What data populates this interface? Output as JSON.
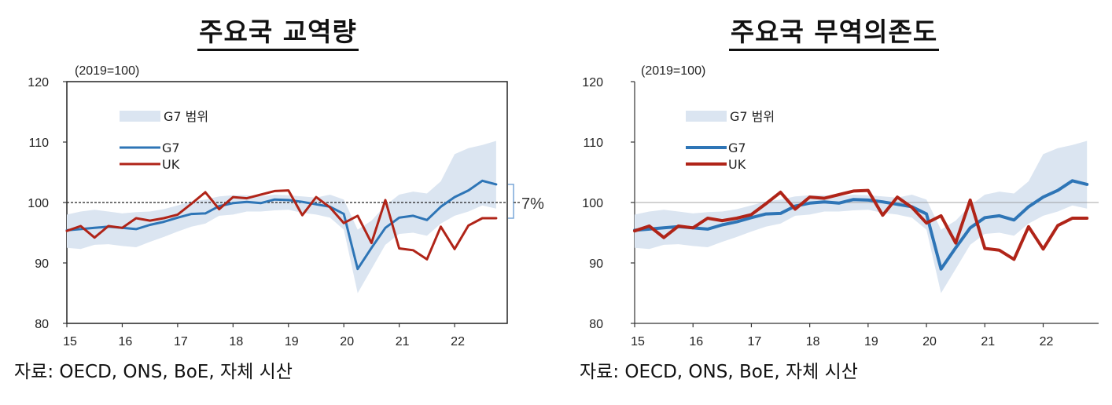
{
  "sources": [
    "자료: OECD, ONS, BoE, 자체 시산",
    "자료: OECD, ONS, BoE, 자체 시산"
  ],
  "colors": {
    "band": "#dbe5f1",
    "g7": "#2e75b6",
    "uk": "#b02418"
  },
  "chart_data": [
    {
      "type": "line",
      "title": "주요국 교역량",
      "unit_label": "(2019=100)",
      "x_ticks": [
        "15",
        "16",
        "17",
        "18",
        "19",
        "20",
        "21",
        "22"
      ],
      "ylim": [
        80,
        120
      ],
      "y_ticks": [
        "80",
        "90",
        "100",
        "110",
        "120"
      ],
      "reference_line": 100,
      "annotation": "7%",
      "legend": [
        "G7 범위",
        "G7",
        "UK"
      ],
      "x": [
        2015.0,
        2015.25,
        2015.5,
        2015.75,
        2016.0,
        2016.25,
        2016.5,
        2016.75,
        2017.0,
        2017.25,
        2017.5,
        2017.75,
        2018.0,
        2018.25,
        2018.5,
        2018.75,
        2019.0,
        2019.25,
        2019.5,
        2019.75,
        2020.0,
        2020.25,
        2020.5,
        2020.75,
        2021.0,
        2021.25,
        2021.5,
        2021.75,
        2022.0,
        2022.25,
        2022.5,
        2022.75
      ],
      "series": [
        {
          "name": "G7",
          "values": [
            95.4,
            95.6,
            95.8,
            96.0,
            95.8,
            95.6,
            96.3,
            96.8,
            97.5,
            98.1,
            98.2,
            99.4,
            99.9,
            100.1,
            99.9,
            100.5,
            100.4,
            100.1,
            99.7,
            99.3,
            98.1,
            89.0,
            92.5,
            95.8,
            97.5,
            97.8,
            97.1,
            99.3,
            100.9,
            102.0,
            103.6,
            103.0
          ]
        },
        {
          "name": "UK",
          "values": [
            95.3,
            96.1,
            94.2,
            96.1,
            95.8,
            97.4,
            97.0,
            97.4,
            98.0,
            99.8,
            101.7,
            98.9,
            100.9,
            100.7,
            101.3,
            101.9,
            102.0,
            97.9,
            100.9,
            99.2,
            96.6,
            97.8,
            93.3,
            100.4,
            92.4,
            92.1,
            90.6,
            96.0,
            92.3,
            96.2,
            97.4,
            97.4
          ]
        },
        {
          "name": "G7 범위",
          "lower": [
            92.5,
            92.3,
            93.0,
            93.1,
            92.8,
            92.6,
            93.5,
            94.3,
            95.2,
            96.0,
            96.5,
            97.8,
            98.0,
            98.5,
            98.5,
            98.7,
            98.8,
            98.3,
            98.0,
            97.5,
            95.5,
            85.0,
            89.0,
            93.0,
            94.8,
            95.0,
            94.5,
            96.5,
            97.8,
            98.5,
            99.5,
            99.0
          ],
          "upper": [
            98.0,
            98.5,
            98.8,
            98.5,
            98.2,
            98.4,
            98.5,
            98.9,
            99.5,
            100.2,
            100.5,
            101.0,
            101.2,
            101.2,
            101.0,
            101.3,
            101.2,
            101.0,
            100.8,
            101.3,
            100.5,
            95.5,
            97.0,
            99.5,
            101.3,
            101.8,
            101.5,
            103.5,
            108.0,
            109.0,
            109.5,
            110.2
          ]
        }
      ]
    },
    {
      "type": "line",
      "title": "주요국 무역의존도",
      "unit_label": "(2019=100)",
      "x_ticks": [
        "15",
        "16",
        "17",
        "18",
        "19",
        "20",
        "21",
        "22"
      ],
      "ylim": [
        80,
        120
      ],
      "y_ticks": [
        "80",
        "90",
        "100",
        "110",
        "120"
      ],
      "reference_line": 100,
      "legend": [
        "G7 범위",
        "G7",
        "UK"
      ],
      "x": [
        2015.0,
        2015.25,
        2015.5,
        2015.75,
        2016.0,
        2016.25,
        2016.5,
        2016.75,
        2017.0,
        2017.25,
        2017.5,
        2017.75,
        2018.0,
        2018.25,
        2018.5,
        2018.75,
        2019.0,
        2019.25,
        2019.5,
        2019.75,
        2020.0,
        2020.25,
        2020.5,
        2020.75,
        2021.0,
        2021.25,
        2021.5,
        2021.75,
        2022.0,
        2022.25,
        2022.5,
        2022.75
      ],
      "series": [
        {
          "name": "G7",
          "values": [
            95.4,
            95.6,
            95.8,
            96.0,
            95.8,
            95.6,
            96.3,
            96.8,
            97.5,
            98.1,
            98.2,
            99.4,
            99.9,
            100.1,
            99.9,
            100.5,
            100.4,
            100.1,
            99.7,
            99.3,
            98.1,
            89.0,
            92.5,
            95.8,
            97.5,
            97.8,
            97.1,
            99.3,
            100.9,
            102.0,
            103.6,
            103.0
          ]
        },
        {
          "name": "UK",
          "values": [
            95.3,
            96.1,
            94.2,
            96.1,
            95.8,
            97.4,
            97.0,
            97.4,
            98.0,
            99.8,
            101.7,
            98.9,
            100.9,
            100.7,
            101.3,
            101.9,
            102.0,
            97.9,
            100.9,
            99.2,
            96.6,
            97.8,
            93.3,
            100.4,
            92.4,
            92.1,
            90.6,
            96.0,
            92.3,
            96.2,
            97.4,
            97.4
          ]
        },
        {
          "name": "G7 범위",
          "lower": [
            92.5,
            92.3,
            93.0,
            93.1,
            92.8,
            92.6,
            93.5,
            94.3,
            95.2,
            96.0,
            96.5,
            97.8,
            98.0,
            98.5,
            98.5,
            98.7,
            98.8,
            98.3,
            98.0,
            97.5,
            95.5,
            85.0,
            89.0,
            93.0,
            94.8,
            95.0,
            94.5,
            96.5,
            97.8,
            98.5,
            99.5,
            99.0
          ],
          "upper": [
            98.0,
            98.5,
            98.8,
            98.5,
            98.2,
            98.4,
            98.5,
            98.9,
            99.5,
            100.2,
            100.5,
            101.0,
            101.2,
            101.2,
            101.0,
            101.3,
            101.2,
            101.0,
            100.8,
            101.3,
            100.5,
            95.5,
            97.0,
            99.5,
            101.3,
            101.8,
            101.5,
            103.5,
            108.0,
            109.0,
            109.5,
            110.2
          ]
        }
      ]
    }
  ]
}
